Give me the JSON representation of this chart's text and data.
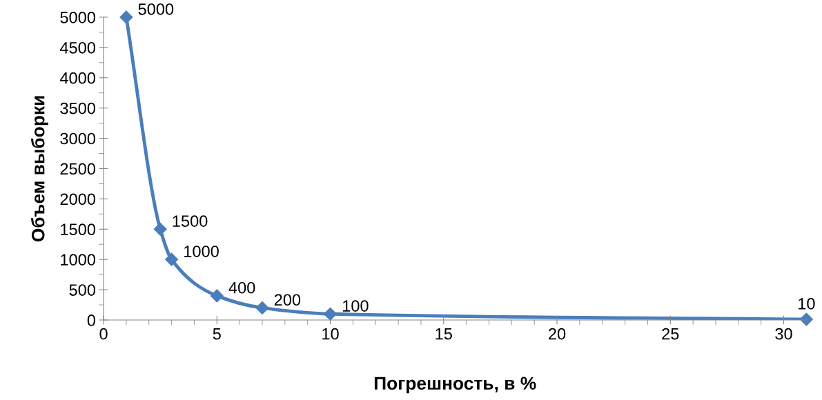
{
  "chart_data": {
    "type": "line",
    "xlabel": "Погрешность, в %",
    "ylabel": "Объем выборки",
    "x": [
      1,
      2.5,
      3,
      5,
      7,
      10,
      31
    ],
    "series": [
      {
        "color": "#4a7ebb",
        "values": [
          5000,
          1500,
          1000,
          400,
          200,
          100,
          10
        ]
      }
    ],
    "xlim": [
      0,
      31
    ],
    "xticks": [
      0,
      5,
      10,
      15,
      20,
      25,
      30
    ],
    "ylim": [
      0,
      5000
    ],
    "yticks": [
      0,
      500,
      1000,
      1500,
      2000,
      2500,
      3000,
      3500,
      4000,
      4500,
      5000
    ],
    "data_labels": true,
    "marker": "diamond",
    "line_style": "solid",
    "grid": false,
    "legend": false
  }
}
